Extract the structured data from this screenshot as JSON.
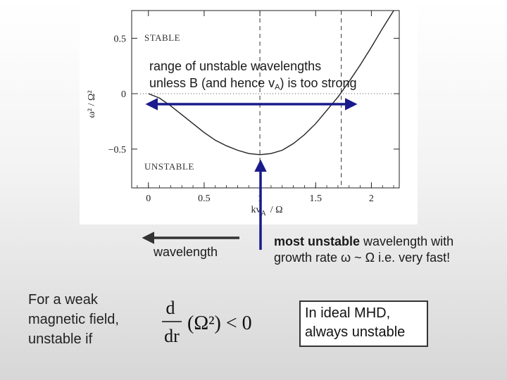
{
  "chart_data": {
    "type": "line",
    "labels": {
      "stable": "STABLE",
      "unstable": "UNSTABLE",
      "ylabel": "ω² / Ω²",
      "xlabel": "kv",
      "xlabel_sub": "A",
      "xlabel_tail": "/ Ω"
    },
    "xlim": [
      -0.15,
      2.25
    ],
    "ylim": [
      -0.85,
      0.75
    ],
    "x_ticks": [
      "0",
      "0.5",
      "1",
      "1.5",
      "2"
    ],
    "x_tick_values": [
      0,
      0.5,
      1,
      1.5,
      2
    ],
    "y_ticks": [
      "0.5",
      "0",
      "−0.5"
    ],
    "y_tick_values": [
      0.5,
      0,
      -0.5
    ],
    "dashed_vlines": [
      1,
      1.73
    ],
    "dotted_hline": 0,
    "series": [
      {
        "x": [
          0,
          0.1,
          0.2,
          0.3,
          0.4,
          0.5,
          0.6,
          0.7,
          0.8,
          0.9,
          1.0,
          1.1,
          1.2,
          1.3,
          1.4,
          1.5,
          1.6,
          1.7,
          1.8,
          1.9,
          2.0,
          2.1,
          2.2
        ],
        "y": [
          0,
          -0.04,
          -0.11,
          -0.19,
          -0.27,
          -0.35,
          -0.42,
          -0.47,
          -0.51,
          -0.54,
          -0.55,
          -0.54,
          -0.51,
          -0.45,
          -0.37,
          -0.27,
          -0.15,
          -0.03,
          0.11,
          0.26,
          0.42,
          0.59,
          0.75
        ]
      }
    ]
  },
  "annotations": {
    "range_line1": "range of unstable wavelengths",
    "range_line2a": "unless B (and hence v",
    "range_line2_sub": "A",
    "range_line2b": ") is too strong",
    "wavelength": "wavelength",
    "most_unstable_bold": "most unstable",
    "most_unstable_rest": " wavelength with",
    "most_unstable_line2": "growth rate ω ~ Ω i.e. very fast!",
    "weak_field_line1": "For a weak",
    "weak_field_line2": "magnetic field,",
    "weak_field_line3": "unstable if",
    "ideal_line1": "In ideal MHD,",
    "ideal_line2": "always unstable"
  },
  "formula": {
    "numerator": "d",
    "denominator": "dr",
    "body": "(Ω²) < 0"
  },
  "colors": {
    "arrow": "#1a1a8c",
    "curve": "#222222",
    "grey_arrow": "#333333"
  }
}
